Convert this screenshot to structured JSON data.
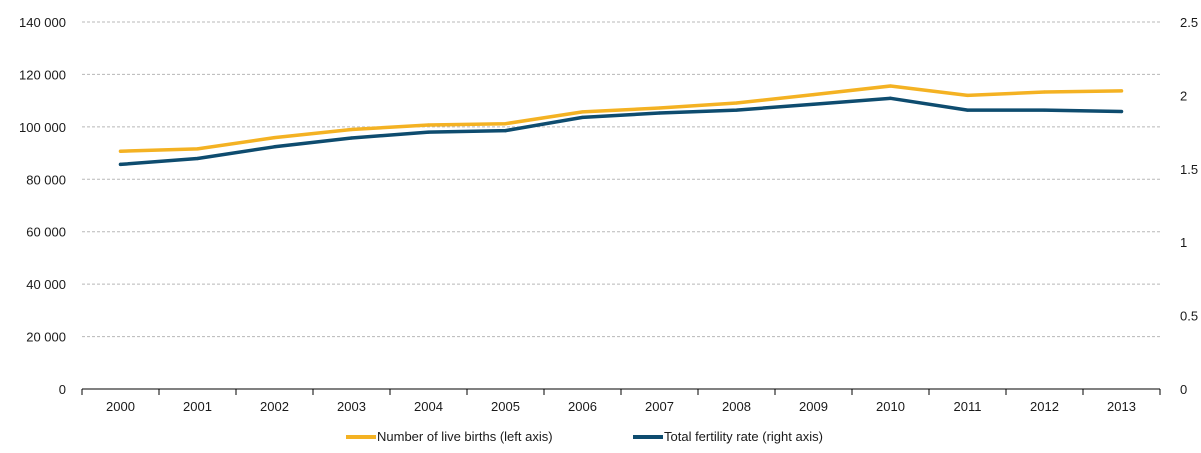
{
  "chart_data": {
    "type": "line",
    "title": "",
    "categories": [
      "2000",
      "2001",
      "2002",
      "2003",
      "2004",
      "2005",
      "2006",
      "2007",
      "2008",
      "2009",
      "2010",
      "2011",
      "2012",
      "2013"
    ],
    "left_axis": {
      "ylim": [
        0,
        140000
      ],
      "ticks": [
        0,
        20000,
        40000,
        60000,
        80000,
        100000,
        120000,
        140000
      ],
      "tick_labels": [
        "0",
        "20 000",
        "40 000",
        "60 000",
        "80 000",
        "100 000",
        "120 000",
        "140 000"
      ]
    },
    "right_axis": {
      "ylim": [
        0,
        2.5
      ],
      "ticks": [
        0,
        0.5,
        1,
        1.5,
        2,
        2.5
      ],
      "tick_labels": [
        "0",
        "0.5",
        "1",
        "1.5",
        "2",
        "2.5"
      ]
    },
    "grid": true,
    "legend_position": "bottom",
    "series": [
      {
        "name": "Number of live births (left axis)",
        "axis": "left",
        "color": "#f4b223",
        "values": [
          90700,
          91600,
          95900,
          99000,
          100700,
          101200,
          105700,
          107200,
          109100,
          112300,
          115600,
          112000,
          113300,
          113700
        ]
      },
      {
        "name": "Total fertility rate (right axis)",
        "axis": "right",
        "color": "#0e4c6f",
        "values": [
          1.53,
          1.57,
          1.65,
          1.71,
          1.75,
          1.76,
          1.85,
          1.88,
          1.9,
          1.94,
          1.98,
          1.9,
          1.9,
          1.89
        ]
      }
    ]
  }
}
